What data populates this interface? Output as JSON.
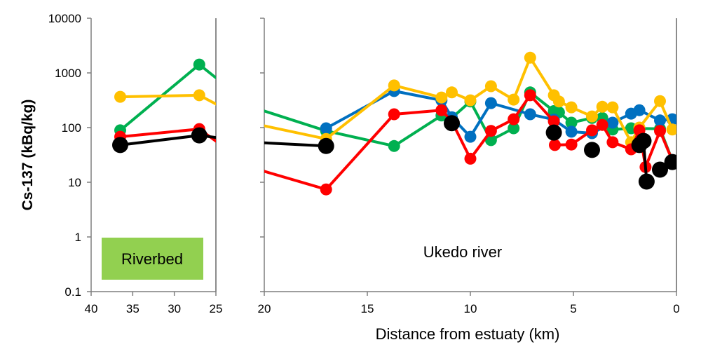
{
  "chart_data": {
    "type": "line",
    "ylabel": "Cs-137 (kBq/kg)",
    "xlabel": "Distance from estuaty (km)",
    "yscale": "log",
    "ylim": [
      0.1,
      10000
    ],
    "yticks": [
      "0.1",
      "1",
      "10",
      "100",
      "1000",
      "10000"
    ],
    "grid": false,
    "panels": [
      {
        "label": "Riverbed",
        "label_bg": "#92D050",
        "xlim": [
          40,
          25
        ],
        "xticks": [
          "40",
          "35",
          "30",
          "25"
        ]
      },
      {
        "label": "Ukedo river",
        "xlim": [
          20,
          0
        ],
        "xticks": [
          "20",
          "15",
          "10",
          "5",
          "0"
        ]
      }
    ],
    "series": [
      {
        "color": "#00B050",
        "points": [
          [
            36.5,
            89
          ],
          [
            27,
            1420
          ],
          [
            17,
            87
          ],
          [
            13.7,
            46
          ],
          [
            11.4,
            166
          ],
          [
            10.9,
            150
          ],
          [
            10,
            300
          ],
          [
            9,
            59
          ],
          [
            7.9,
            97
          ],
          [
            7.1,
            440
          ],
          [
            5.95,
            200
          ],
          [
            5.7,
            190
          ],
          [
            5.1,
            123
          ],
          [
            4.1,
            150
          ],
          [
            3.6,
            150
          ],
          [
            3.1,
            92
          ],
          [
            2.2,
            97
          ],
          [
            0.8,
            95
          ],
          [
            0.2,
            25
          ]
        ]
      },
      {
        "color": "#0070C0",
        "points": [
          [
            17,
            97
          ],
          [
            13.7,
            465
          ],
          [
            11.4,
            315
          ],
          [
            10.9,
            155
          ],
          [
            10,
            68
          ],
          [
            9,
            280
          ],
          [
            7.1,
            175
          ],
          [
            5.95,
            140
          ],
          [
            5.1,
            84
          ],
          [
            4.1,
            79
          ],
          [
            3.1,
            123
          ],
          [
            2.2,
            180
          ],
          [
            1.8,
            208
          ],
          [
            0.8,
            135
          ],
          [
            0.2,
            142
          ]
        ]
      },
      {
        "color": "#FFC000",
        "points": [
          [
            36.5,
            365
          ],
          [
            27,
            390
          ],
          [
            17,
            62
          ],
          [
            13.7,
            590
          ],
          [
            11.4,
            355
          ],
          [
            10.9,
            440
          ],
          [
            10,
            315
          ],
          [
            9,
            570
          ],
          [
            7.9,
            325
          ],
          [
            7.1,
            1900
          ],
          [
            5.95,
            390
          ],
          [
            5.7,
            300
          ],
          [
            5.1,
            235
          ],
          [
            4.1,
            160
          ],
          [
            3.6,
            240
          ],
          [
            3.1,
            235
          ],
          [
            2.2,
            54
          ],
          [
            1.8,
            100
          ],
          [
            0.8,
            305
          ],
          [
            0.2,
            92
          ]
        ]
      },
      {
        "color": "#FF0000",
        "points": [
          [
            36.5,
            68
          ],
          [
            27,
            94
          ],
          [
            17,
            7.4
          ],
          [
            13.7,
            175
          ],
          [
            11.4,
            208
          ],
          [
            10.9,
            130
          ],
          [
            10,
            27
          ],
          [
            9,
            87
          ],
          [
            7.9,
            142
          ],
          [
            7.1,
            390
          ],
          [
            5.95,
            130
          ],
          [
            5.9,
            48
          ],
          [
            5.1,
            49
          ],
          [
            4.1,
            89
          ],
          [
            3.6,
            112
          ],
          [
            3.1,
            54
          ],
          [
            2.2,
            40
          ],
          [
            1.8,
            89
          ],
          [
            1.5,
            19
          ],
          [
            0.8,
            87
          ],
          [
            0.2,
            25
          ]
        ]
      },
      {
        "color": "#000000",
        "points": [
          [
            36.5,
            48
          ],
          [
            27,
            72
          ],
          [
            17,
            46
          ],
          null,
          [
            10.9,
            120
          ],
          null,
          [
            5.95,
            81
          ],
          null,
          [
            4.1,
            39
          ],
          null,
          [
            1.8,
            48
          ],
          [
            1.6,
            57
          ],
          [
            1.45,
            10.3
          ],
          null,
          [
            0.8,
            17
          ],
          [
            0.2,
            23.5
          ]
        ]
      }
    ]
  }
}
